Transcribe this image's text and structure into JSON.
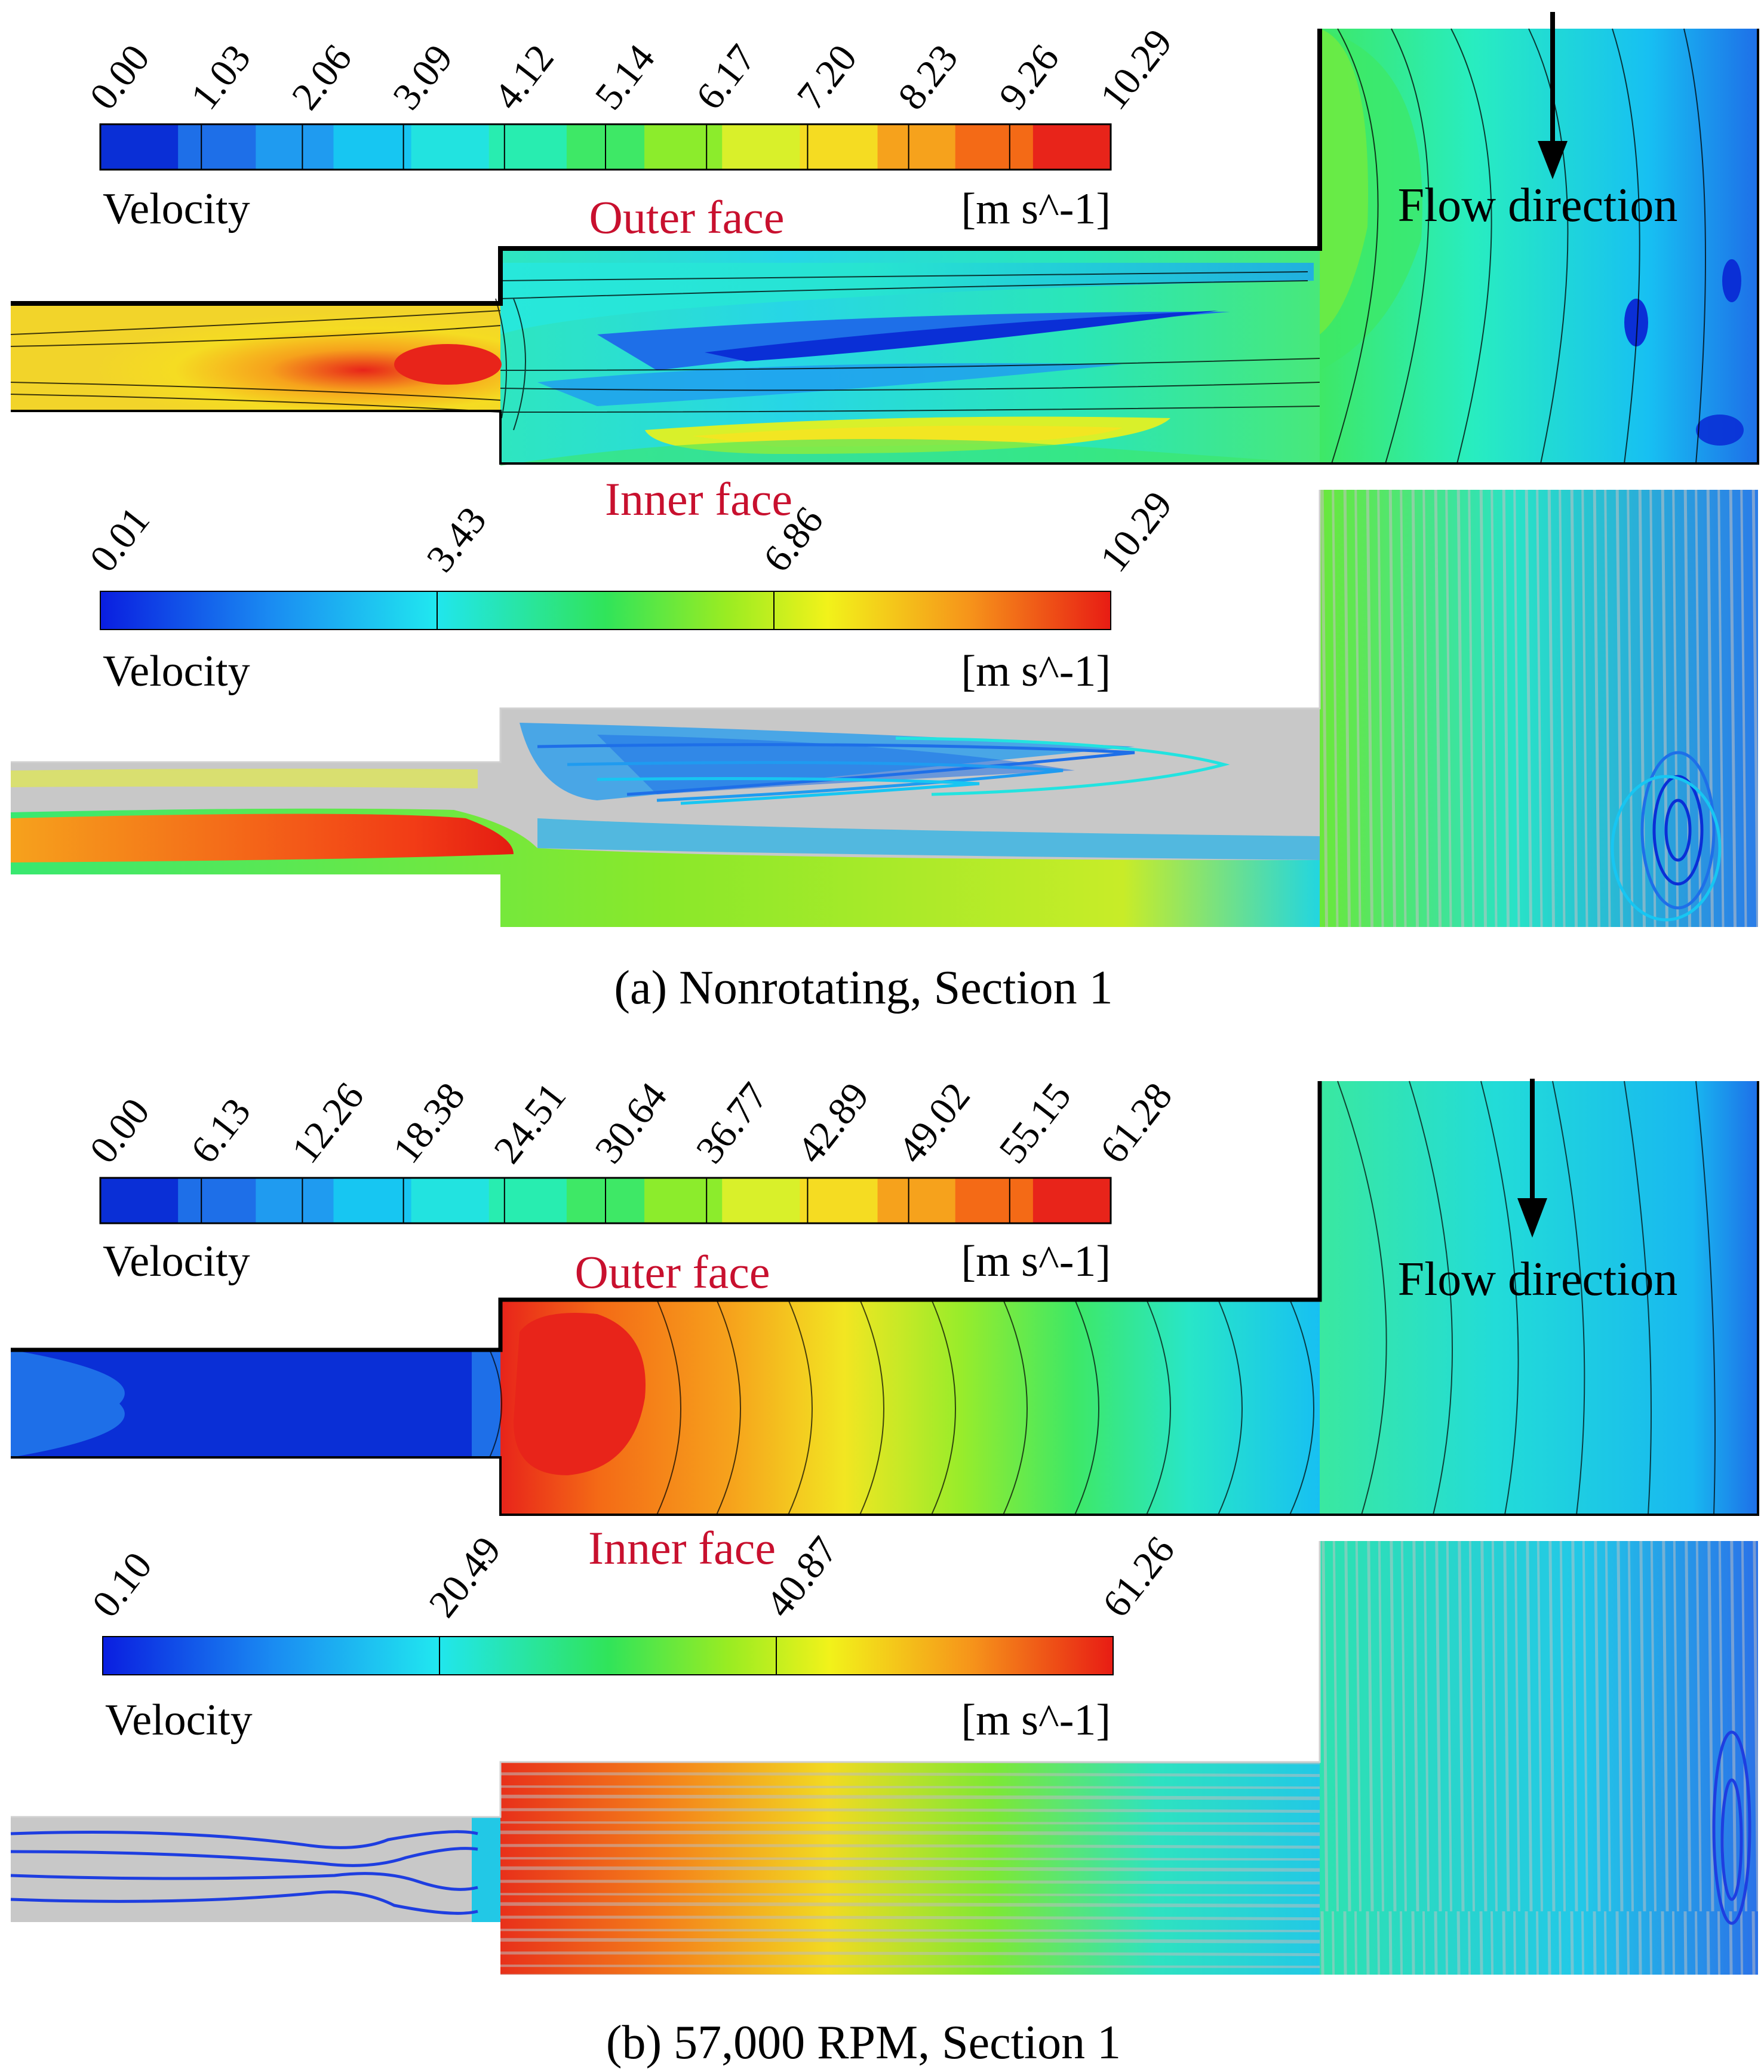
{
  "panels": [
    {
      "caption": "(a) Nonrotating, Section 1",
      "outer": {
        "face_label": "Outer face",
        "legend": {
          "title": "Velocity",
          "unit": "[m s^-1]",
          "ticks": [
            "0.00",
            "1.03",
            "2.06",
            "3.09",
            "4.12",
            "5.14",
            "6.17",
            "7.20",
            "8.23",
            "9.26",
            "10.29"
          ]
        },
        "flow_label": "Flow direction"
      },
      "inner": {
        "face_label": "Inner face",
        "legend": {
          "title": "Velocity",
          "unit": "[m s^-1]",
          "ticks": [
            "0.01",
            "3.43",
            "6.86",
            "10.29"
          ]
        }
      }
    },
    {
      "caption": "(b) 57,000 RPM, Section 1",
      "outer": {
        "face_label": "Outer face",
        "legend": {
          "title": "Velocity",
          "unit": "[m s^-1]",
          "ticks": [
            "0.00",
            "6.13",
            "12.26",
            "18.38",
            "24.51",
            "30.64",
            "36.77",
            "42.89",
            "49.02",
            "55.15",
            "61.28"
          ]
        },
        "flow_label": "Flow direction"
      },
      "inner": {
        "face_label": "Inner face",
        "legend": {
          "title": "Velocity",
          "unit": "[m s^-1]",
          "ticks": [
            "0.10",
            "20.49",
            "40.87",
            "61.26"
          ]
        }
      }
    }
  ],
  "colors": {
    "banded": [
      "#0a2fd6",
      "#1e6fe8",
      "#1f9bf0",
      "#17c6f2",
      "#22e3e0",
      "#28edb0",
      "#3ee866",
      "#8cec2c",
      "#d9f02a",
      "#f5dc22",
      "#f6a21c",
      "#f46a16",
      "#e8241a"
    ],
    "wall": "#000000",
    "streamline_bg": "#c8c8c8",
    "face_text": "#c8102e"
  }
}
